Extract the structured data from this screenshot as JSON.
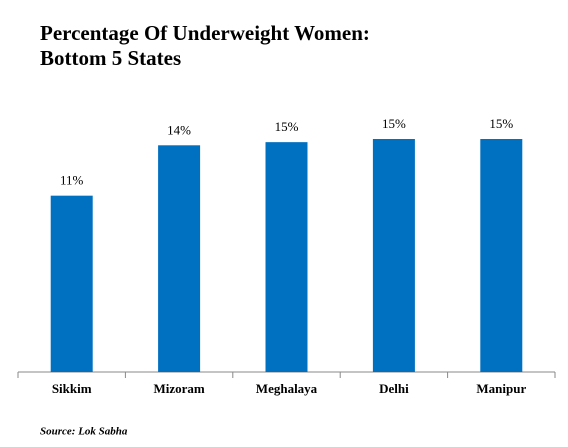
{
  "chart_data": {
    "type": "bar",
    "title_lines": [
      "Percentage Of Underweight Women:",
      "Bottom 5 States"
    ],
    "categories": [
      "Sikkim",
      "Mizoram",
      "Meghalaya",
      "Delhi",
      "Manipur"
    ],
    "values": [
      11.2,
      14.4,
      14.6,
      14.8,
      14.8
    ],
    "value_labels": [
      "11%",
      "14%",
      "15%",
      "15%",
      "15%"
    ],
    "color": "#0070c0",
    "source": "Source: Lok Sabha"
  }
}
